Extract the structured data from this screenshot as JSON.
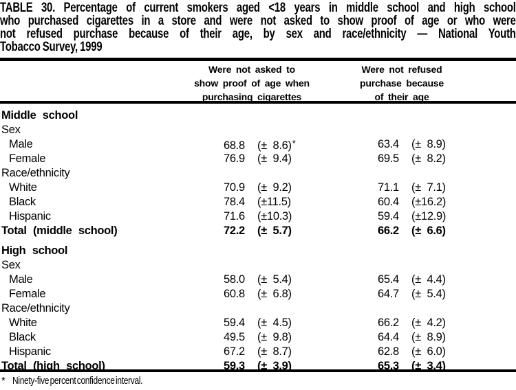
{
  "title": {
    "lines": [
      "TABLE 30. Percentage of current smokers aged <18 years in middle school and high school",
      "who purchased cigarettes in a store and were not asked to show proof of age or who were",
      "not refused purchase because of their age, by sex and race/ethnicity — National Youth",
      "Tobacco Survey, 1999"
    ]
  },
  "columns": {
    "col1": {
      "lines": [
        "Were not asked to",
        "show proof of age when",
        "purchasing cigarettes"
      ]
    },
    "col2": {
      "lines": [
        "Were not refused",
        "purchase because",
        "of their age"
      ]
    }
  },
  "table": {
    "rows": [
      {
        "label": "Middle school"
      },
      {
        "label": "Sex"
      },
      {
        "label": "Male",
        "col1": {
          "value": "68.8",
          "ci": "(±  8.6)",
          "note": "*"
        },
        "col2": {
          "value": "63.4",
          "ci": "(±  8.9)"
        }
      },
      {
        "label": "Female",
        "col1": {
          "value": "76.9",
          "ci": "(±  9.4)"
        },
        "col2": {
          "value": "69.5",
          "ci": "(±  8.2)"
        }
      },
      {
        "label": "Race/ethnicity"
      },
      {
        "label": "White",
        "col1": {
          "value": "70.9",
          "ci": "(±  9.2)"
        },
        "col2": {
          "value": "71.1",
          "ci": "(±  7.1)"
        }
      },
      {
        "label": "Black",
        "col1": {
          "value": "78.4",
          "ci": "(±11.5)"
        },
        "col2": {
          "value": "60.4",
          "ci": "(±16.2)"
        }
      },
      {
        "label": "Hispanic",
        "col1": {
          "value": "71.6",
          "ci": "(±10.3)"
        },
        "col2": {
          "value": "59.4",
          "ci": "(±12.9)"
        }
      },
      {
        "label": "Total (middle school)",
        "col1": {
          "value": "72.2",
          "ci": "(±  5.7)"
        },
        "col2": {
          "value": "66.2",
          "ci": "(±  6.6)"
        }
      },
      {
        "label": "High school"
      },
      {
        "label": "Sex"
      },
      {
        "label": "Male",
        "col1": {
          "value": "58.0",
          "ci": "(±  5.4)"
        },
        "col2": {
          "value": "65.4",
          "ci": "(±  4.4)"
        }
      },
      {
        "label": "Female",
        "col1": {
          "value": "60.8",
          "ci": "(±  6.8)"
        },
        "col2": {
          "value": "64.7",
          "ci": "(±  5.4)"
        }
      },
      {
        "label": "Race/ethnicity"
      },
      {
        "label": "White",
        "col1": {
          "value": "59.4",
          "ci": "(±  4.5)"
        },
        "col2": {
          "value": "66.2",
          "ci": "(±  4.2)"
        }
      },
      {
        "label": "Black",
        "col1": {
          "value": "49.5",
          "ci": "(±  9.8)"
        },
        "col2": {
          "value": "64.4",
          "ci": "(±  8.9)"
        }
      },
      {
        "label": "Hispanic",
        "col1": {
          "value": "67.2",
          "ci": "(±  8.7)"
        },
        "col2": {
          "value": "62.8",
          "ci": "(±  6.0)"
        }
      },
      {
        "label": "Total (high school)",
        "col1": {
          "value": "59.3",
          "ci": "(±  3.9)"
        },
        "col2": {
          "value": "65.3",
          "ci": "(±  3.4)"
        }
      }
    ]
  },
  "footnote": {
    "symbol": "*",
    "text": "Ninety-five percent confidence interval."
  },
  "colors": {
    "ink": "#000000",
    "paper": "#ffffff"
  }
}
